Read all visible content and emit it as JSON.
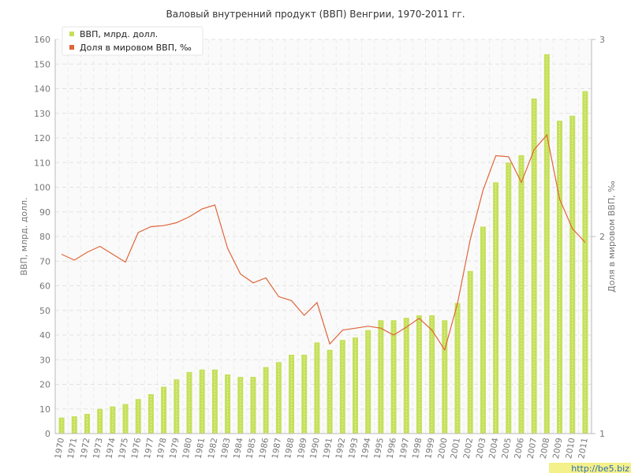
{
  "chart_data": {
    "type": "bar",
    "title": "Валовый внутренний продукт (ВВП) Венгрии, 1970-2011 гг.",
    "ylabel": "ВВП, млрд. долл.",
    "y2label": "Доля в мировом ВВП, ‰",
    "ylim": [
      0,
      160
    ],
    "y2lim": [
      1,
      3
    ],
    "yticks": [
      "0",
      "10",
      "20",
      "30",
      "40",
      "50",
      "60",
      "70",
      "80",
      "90",
      "100",
      "110",
      "120",
      "130",
      "140",
      "150",
      "160"
    ],
    "y2ticks": [
      "1",
      "2",
      "3"
    ],
    "grid": true,
    "legend_position": "top-left",
    "categories": [
      "1970",
      "1971",
      "1972",
      "1973",
      "1974",
      "1975",
      "1976",
      "1977",
      "1978",
      "1979",
      "1980",
      "1981",
      "1982",
      "1983",
      "1984",
      "1985",
      "1986",
      "1987",
      "1988",
      "1989",
      "1990",
      "1991",
      "1992",
      "1993",
      "1994",
      "1995",
      "1996",
      "1997",
      "1998",
      "1999",
      "2000",
      "2001",
      "2002",
      "2003",
      "2004",
      "2005",
      "2006",
      "2007",
      "2008",
      "2009",
      "2010",
      "2011"
    ],
    "series": [
      {
        "name": "ВВП, млрд. долл.",
        "type": "bar",
        "axis": "left",
        "color": "#c5e05a",
        "values": [
          6.5,
          7,
          8,
          10,
          11,
          12,
          14,
          16,
          19,
          22,
          25,
          26,
          26,
          24,
          23,
          23,
          27,
          29,
          32,
          32,
          37,
          34,
          38,
          39,
          42,
          46,
          46,
          47,
          48,
          48,
          46,
          53,
          66,
          84,
          102,
          110,
          113,
          136,
          154,
          127,
          129,
          139
        ]
      },
      {
        "name": "Доля в мировом ВВП, ‰",
        "type": "line",
        "axis": "right",
        "color": "#e0653a",
        "values": [
          1.91,
          1.88,
          1.92,
          1.95,
          1.91,
          1.87,
          2.02,
          2.05,
          2.055,
          2.07,
          2.1,
          2.14,
          2.16,
          1.94,
          1.81,
          1.765,
          1.79,
          1.695,
          1.675,
          1.6,
          1.665,
          1.455,
          1.525,
          1.535,
          1.545,
          1.535,
          1.5,
          1.54,
          1.585,
          1.525,
          1.425,
          1.66,
          1.985,
          2.235,
          2.41,
          2.405,
          2.275,
          2.44,
          2.515,
          2.19,
          2.04,
          1.97
        ]
      }
    ]
  },
  "watermark": "http://be5.biz"
}
